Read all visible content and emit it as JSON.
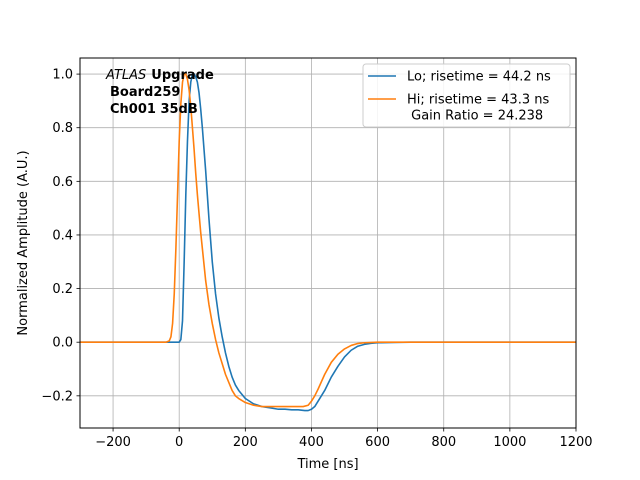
{
  "chart_data": {
    "type": "line",
    "title": "",
    "xlabel": "Time [ns]",
    "ylabel": "Normalized Amplitude (A.U.)",
    "xlim": [
      -300,
      1200
    ],
    "ylim": [
      -0.32,
      1.06
    ],
    "xticks": [
      -200,
      0,
      200,
      400,
      600,
      800,
      1000,
      1200
    ],
    "xtick_labels": [
      "−200",
      "0",
      "200",
      "400",
      "600",
      "800",
      "1000",
      "1200"
    ],
    "yticks": [
      -0.2,
      0.0,
      0.2,
      0.4,
      0.6,
      0.8,
      1.0
    ],
    "ytick_labels": [
      "−0.2",
      "0.0",
      "0.2",
      "0.4",
      "0.6",
      "0.8",
      "1.0"
    ],
    "grid": true,
    "legend_position": "top-right",
    "annotation": {
      "italic": "ATLAS",
      "bold_line1": "Upgrade",
      "line2": "Board259",
      "line3": "Ch001 35dB"
    },
    "series": [
      {
        "name": "Lo; risetime = 44.2 ns",
        "color": "#1f77b4",
        "x": [
          -300,
          -100,
          0,
          5,
          10,
          15,
          20,
          25,
          30,
          35,
          40,
          45,
          50,
          55,
          60,
          65,
          70,
          75,
          80,
          85,
          90,
          95,
          100,
          110,
          120,
          130,
          140,
          150,
          160,
          170,
          180,
          200,
          225,
          250,
          275,
          300,
          320,
          340,
          360,
          380,
          390,
          400,
          410,
          420,
          440,
          460,
          480,
          500,
          520,
          540,
          560,
          580,
          600,
          650,
          700,
          800,
          900,
          1000,
          1100,
          1200
        ],
        "y": [
          0.0,
          0.0,
          0.0,
          0.01,
          0.08,
          0.3,
          0.55,
          0.75,
          0.9,
          0.97,
          1.0,
          1.0,
          0.99,
          0.97,
          0.93,
          0.87,
          0.8,
          0.72,
          0.64,
          0.55,
          0.46,
          0.38,
          0.3,
          0.18,
          0.09,
          0.02,
          -0.04,
          -0.09,
          -0.13,
          -0.16,
          -0.18,
          -0.21,
          -0.23,
          -0.24,
          -0.245,
          -0.25,
          -0.25,
          -0.252,
          -0.252,
          -0.255,
          -0.255,
          -0.25,
          -0.24,
          -0.22,
          -0.18,
          -0.13,
          -0.09,
          -0.055,
          -0.03,
          -0.015,
          -0.008,
          -0.004,
          -0.002,
          -0.001,
          0.0,
          0.0,
          0.0,
          0.0,
          0.0,
          0.0
        ]
      },
      {
        "name": "Hi; risetime = 43.3 ns\n Gain Ratio = 24.238",
        "color": "#ff7f0e",
        "x": [
          -300,
          -100,
          -40,
          -30,
          -25,
          -20,
          -15,
          -10,
          -5,
          0,
          5,
          10,
          15,
          20,
          25,
          30,
          35,
          40,
          45,
          50,
          55,
          60,
          65,
          70,
          75,
          80,
          90,
          100,
          110,
          120,
          130,
          140,
          150,
          160,
          170,
          180,
          200,
          225,
          250,
          275,
          300,
          325,
          350,
          375,
          390,
          400,
          410,
          420,
          440,
          460,
          480,
          500,
          520,
          540,
          560,
          600,
          700,
          800,
          900,
          1000,
          1100,
          1200
        ],
        "y": [
          0.0,
          0.0,
          0.0,
          0.005,
          0.02,
          0.07,
          0.18,
          0.35,
          0.55,
          0.75,
          0.89,
          0.97,
          1.0,
          1.0,
          0.98,
          0.94,
          0.88,
          0.8,
          0.72,
          0.63,
          0.55,
          0.48,
          0.41,
          0.35,
          0.29,
          0.23,
          0.14,
          0.07,
          0.01,
          -0.04,
          -0.08,
          -0.12,
          -0.15,
          -0.18,
          -0.2,
          -0.21,
          -0.225,
          -0.235,
          -0.24,
          -0.24,
          -0.24,
          -0.24,
          -0.24,
          -0.24,
          -0.235,
          -0.22,
          -0.2,
          -0.175,
          -0.12,
          -0.075,
          -0.045,
          -0.025,
          -0.012,
          -0.005,
          -0.002,
          0.0,
          0.0,
          0.0,
          0.0,
          0.0,
          0.0,
          0.0
        ]
      }
    ]
  }
}
